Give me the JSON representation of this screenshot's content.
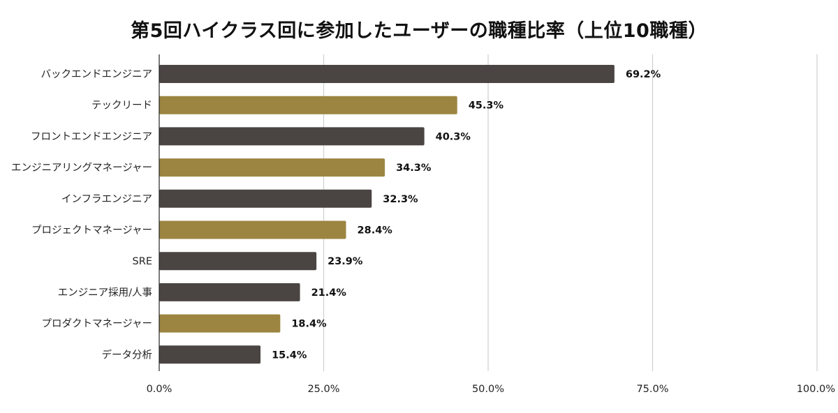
{
  "chart_data": {
    "type": "bar",
    "orientation": "horizontal",
    "title": "第5回ハイクラス回に参加したユーザーの職種比率（上位10職種）",
    "xlabel": "",
    "ylabel": "",
    "xlim": [
      0,
      100
    ],
    "ticks": [
      {
        "value": 0,
        "label": "0.0%"
      },
      {
        "value": 25,
        "label": "25.0%"
      },
      {
        "value": 50,
        "label": "50.0%"
      },
      {
        "value": 75,
        "label": "75.0%"
      },
      {
        "value": 100,
        "label": "100.0%"
      }
    ],
    "grid": true,
    "legend": "none",
    "colors": [
      "#4a4542",
      "#9c8541"
    ],
    "categories": [
      "バックエンドエンジニア",
      "テックリード",
      "フロントエンドエンジニア",
      "エンジニアリングマネージャー",
      "インフラエンジニア",
      "プロジェクトマネージャー",
      "SRE",
      "エンジニア採用/人事",
      "プロダクトマネージャー",
      "データ分析"
    ],
    "values": [
      69.2,
      45.3,
      40.3,
      34.3,
      32.3,
      28.4,
      23.9,
      21.4,
      18.4,
      15.4
    ],
    "value_labels": [
      "69.2%",
      "45.3%",
      "40.3%",
      "34.3%",
      "32.3%",
      "28.4%",
      "23.9%",
      "21.4%",
      "18.4%",
      "15.4%"
    ],
    "bar_colors": [
      "#4a4542",
      "#9c8541",
      "#4a4542",
      "#9c8541",
      "#4a4542",
      "#9c8541",
      "#4a4542",
      "#4a4542",
      "#9c8541",
      "#4a4542"
    ]
  }
}
